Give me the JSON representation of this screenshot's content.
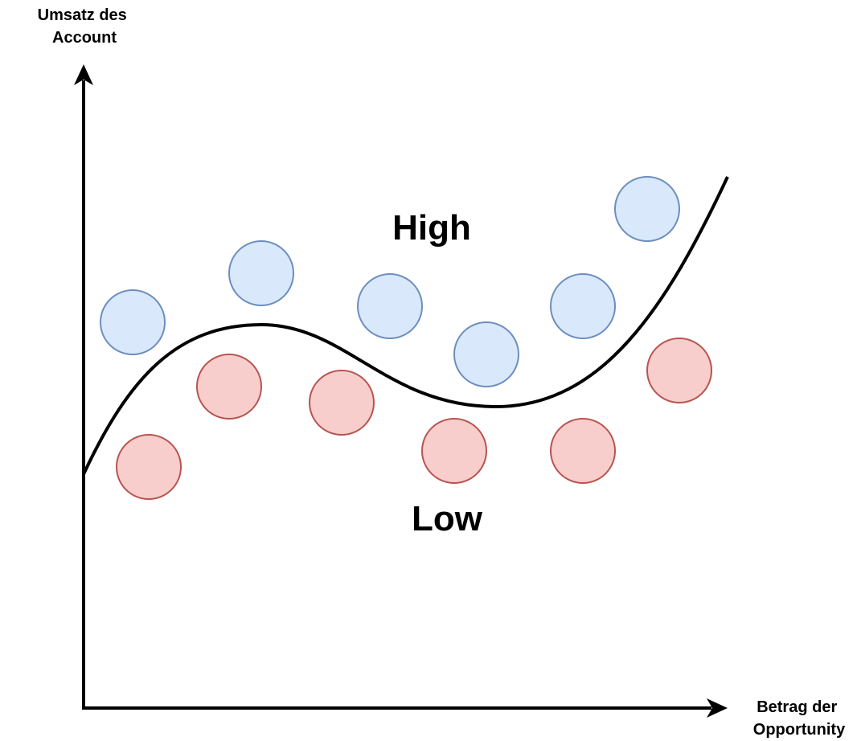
{
  "axes": {
    "y_label_lines": [
      "Umsatz des",
      "Account"
    ],
    "x_label_lines": [
      "Betrag der",
      "Opportunity"
    ]
  },
  "regions": {
    "high": "High",
    "low": "Low"
  },
  "classes": {
    "high": {
      "fill": "#dae8fc",
      "stroke": "#6c8ebf"
    },
    "low": {
      "fill": "#f8cecc",
      "stroke": "#b85450"
    }
  },
  "curve": {
    "color": "#000000"
  }
}
